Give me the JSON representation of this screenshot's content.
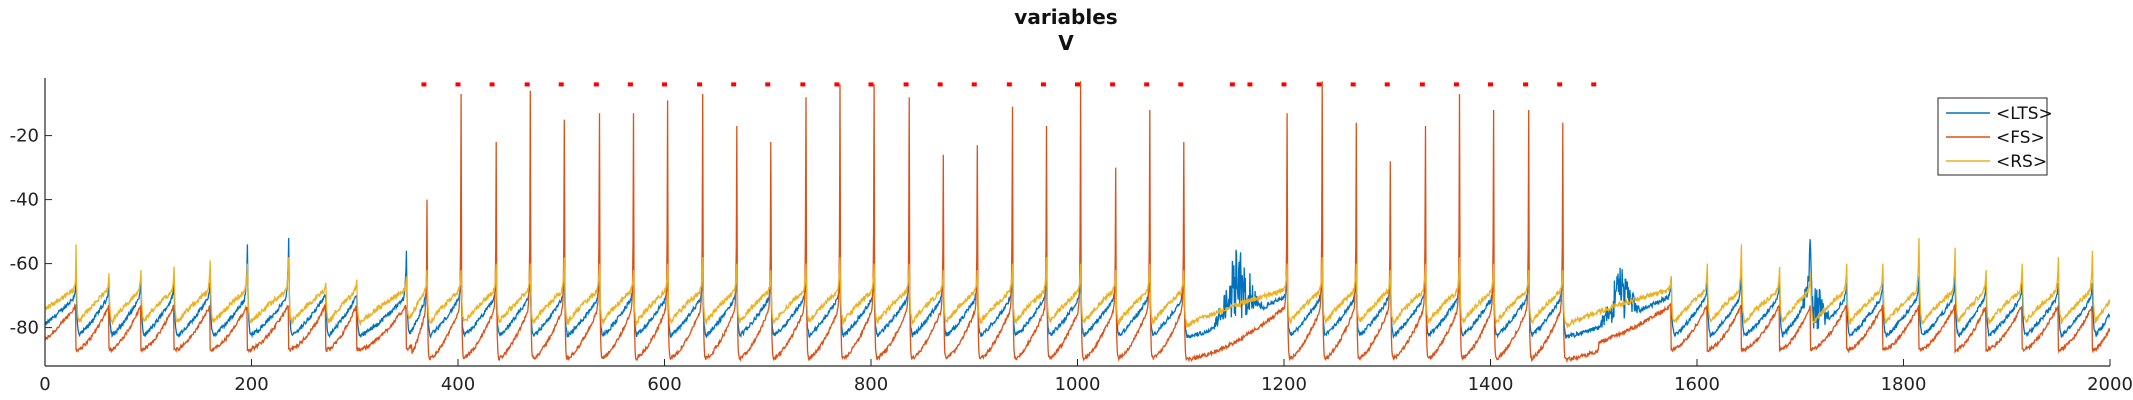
{
  "chart_data": {
    "type": "line",
    "title": "variables",
    "subtitle": "V",
    "xlabel": "",
    "ylabel": "",
    "xlim": [
      0,
      2000
    ],
    "ylim": [
      -92,
      -2
    ],
    "x_ticks": [
      0,
      200,
      400,
      600,
      800,
      1000,
      1200,
      1400,
      1600,
      1800,
      2000
    ],
    "y_ticks": [
      -20,
      -40,
      -60,
      -80
    ],
    "grid": false,
    "legend_position": "top-right",
    "series": [
      {
        "name": "<LTS>",
        "color": "#0072BD",
        "baseline_low": -83,
        "baseline_high": -70,
        "spike_peak": -64
      },
      {
        "name": "<FS>",
        "color": "#D95319",
        "baseline_low": -91,
        "baseline_high": -73,
        "spike_peak_typical": -12
      },
      {
        "name": "<RS>",
        "color": "#EDB120",
        "baseline_low": -80,
        "baseline_high": -68,
        "spike_peak": -60
      }
    ],
    "fs_spike_times": [
      370,
      403,
      437,
      470,
      503,
      537,
      570,
      603,
      637,
      670,
      703,
      737,
      770,
      803,
      837,
      870,
      903,
      937,
      970,
      1003,
      1037,
      1070,
      1103,
      1203,
      1237,
      1270,
      1303,
      1337,
      1370,
      1403,
      1437,
      1470
    ],
    "fs_spike_peaks": [
      -40,
      -7,
      -22,
      -6,
      -15,
      -13,
      -13,
      -9,
      -7,
      -17,
      -22,
      -8,
      -4,
      -4,
      -8,
      -26,
      -23,
      -11,
      -17,
      -3,
      -30,
      -12,
      -22,
      -13,
      -3,
      -16,
      -28,
      -17,
      -7,
      -12,
      -12,
      -16
    ],
    "rs_spike_peaks": [
      -62,
      -62,
      -60,
      -60,
      -58,
      -60,
      -62,
      -60,
      -58,
      -60,
      -62,
      -60,
      -58,
      -60,
      -60,
      -62,
      -62,
      -60,
      -58,
      -60,
      -62,
      -60,
      -62,
      -60,
      -58,
      -60,
      -62,
      -60,
      -58,
      -60,
      -62,
      -62
    ],
    "pre_spikes": [
      {
        "t": 30,
        "lts": -62,
        "rs": -54
      },
      {
        "t": 62,
        "lts": -66,
        "rs": -63
      },
      {
        "t": 93,
        "lts": -66,
        "rs": -62
      },
      {
        "t": 125,
        "lts": -66,
        "rs": -61
      },
      {
        "t": 160,
        "lts": -66,
        "rs": -59
      },
      {
        "t": 196,
        "lts": -54,
        "rs": -60
      },
      {
        "t": 236,
        "lts": -52,
        "rs": -58
      },
      {
        "t": 272,
        "lts": -70,
        "rs": -66
      },
      {
        "t": 302,
        "lts": -70,
        "rs": -65
      },
      {
        "t": 350,
        "lts": -56,
        "rs": -64
      }
    ],
    "post_spikes": [
      {
        "t": 1575,
        "lts": -64,
        "rs": -64
      },
      {
        "t": 1610,
        "lts": -66,
        "rs": -60
      },
      {
        "t": 1643,
        "lts": -62,
        "rs": -54
      },
      {
        "t": 1680,
        "lts": -66,
        "rs": -61
      },
      {
        "t": 1710,
        "lts": -56,
        "rs": -63
      },
      {
        "t": 1745,
        "lts": -66,
        "rs": -60
      },
      {
        "t": 1780,
        "lts": -66,
        "rs": -60
      },
      {
        "t": 1815,
        "lts": -64,
        "rs": -52
      },
      {
        "t": 1850,
        "lts": -64,
        "rs": -55
      },
      {
        "t": 1880,
        "lts": -66,
        "rs": -62
      },
      {
        "t": 1915,
        "lts": -66,
        "rs": -60
      },
      {
        "t": 1950,
        "lts": -66,
        "rs": -58
      },
      {
        "t": 1983,
        "lts": -66,
        "rs": -56
      }
    ],
    "lts_bursts": [
      {
        "t_start": 1130,
        "t_end": 1180,
        "peak": -51
      },
      {
        "t_start": 1505,
        "t_end": 1545,
        "peak": -56
      },
      {
        "t_start": 1700,
        "t_end": 1730,
        "peak": -58
      }
    ],
    "event_markers": {
      "color": "#FF0000",
      "y": -4,
      "times": [
        367,
        400,
        433,
        467,
        500,
        534,
        567,
        600,
        634,
        667,
        700,
        734,
        767,
        800,
        834,
        867,
        900,
        934,
        967,
        1000,
        1034,
        1067,
        1100,
        1150,
        1167,
        1200,
        1234,
        1267,
        1300,
        1334,
        1367,
        1400,
        1434,
        1467,
        1500
      ]
    }
  }
}
